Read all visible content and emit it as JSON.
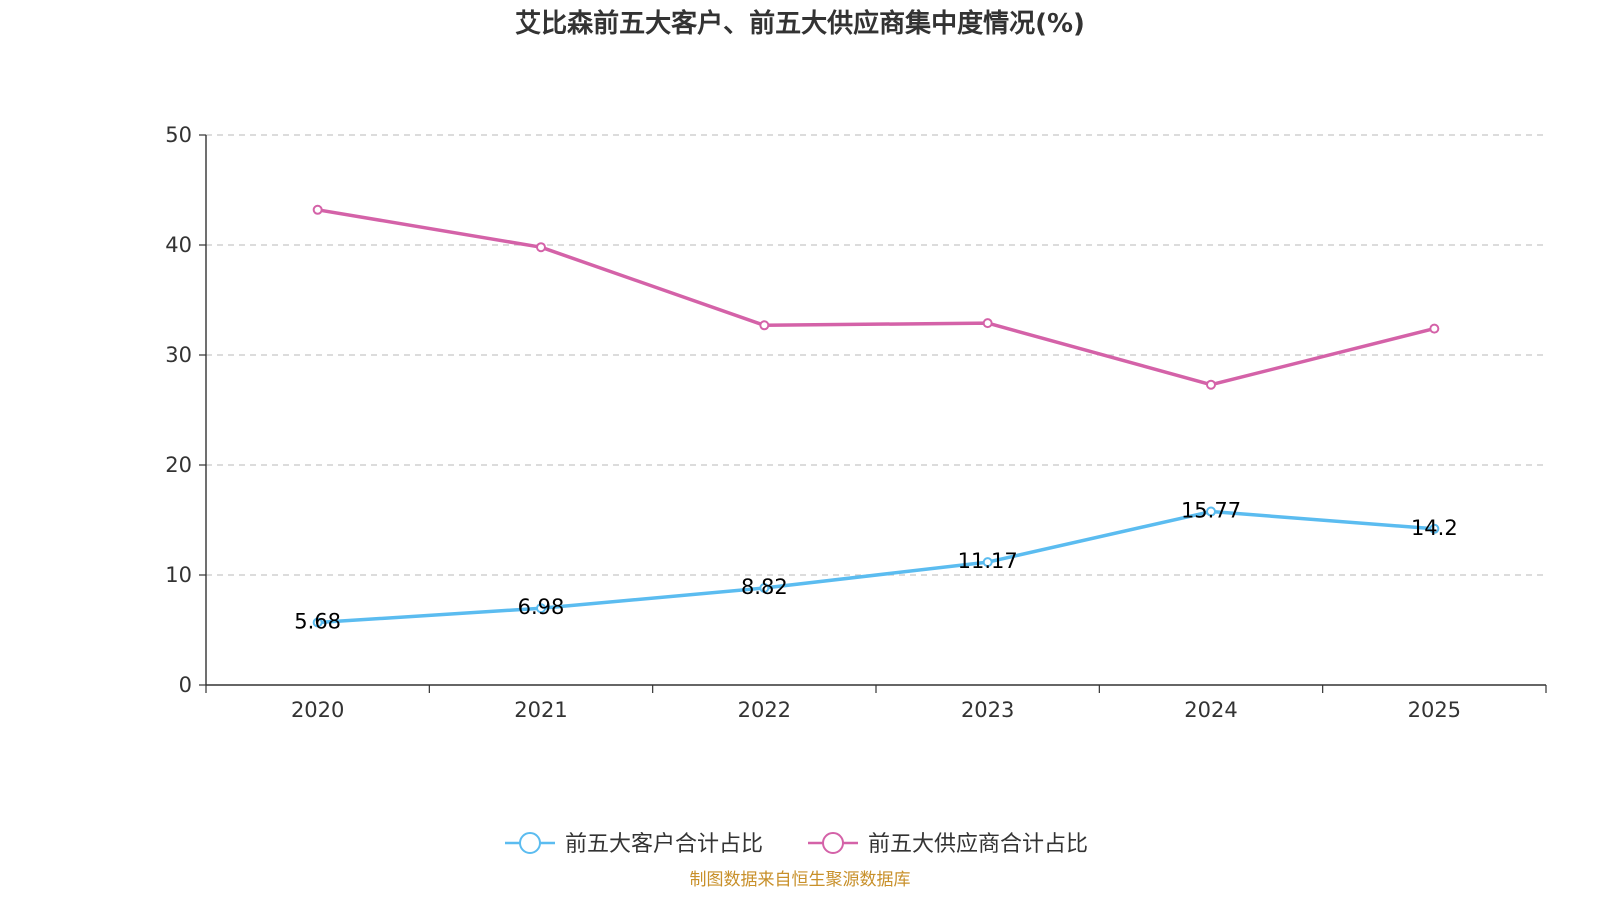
{
  "chart_data": {
    "type": "line",
    "title": "艾比森前五大客户、前五大供应商集中度情况(%)",
    "categories": [
      "2020",
      "2021",
      "2022",
      "2023",
      "2024",
      "2025"
    ],
    "ylim": [
      0,
      50
    ],
    "yticks": [
      0,
      10,
      20,
      30,
      40,
      50
    ],
    "grid": true,
    "legend_position": "bottom-center",
    "series": [
      {
        "name": "前五大客户合计占比",
        "color": "#5bbcf0",
        "values": [
          5.68,
          6.98,
          8.82,
          11.17,
          15.77,
          14.2
        ],
        "labels": [
          "5.68",
          "6.98",
          "8.82",
          "11.17",
          "15.77",
          "14.2"
        ],
        "show_labels": true
      },
      {
        "name": "前五大供应商合计占比",
        "color": "#d462a8",
        "values": [
          43.2,
          39.8,
          32.7,
          32.9,
          27.3,
          32.4
        ],
        "show_labels": false
      }
    ]
  },
  "source_note": "制图数据来自恒生聚源数据库"
}
